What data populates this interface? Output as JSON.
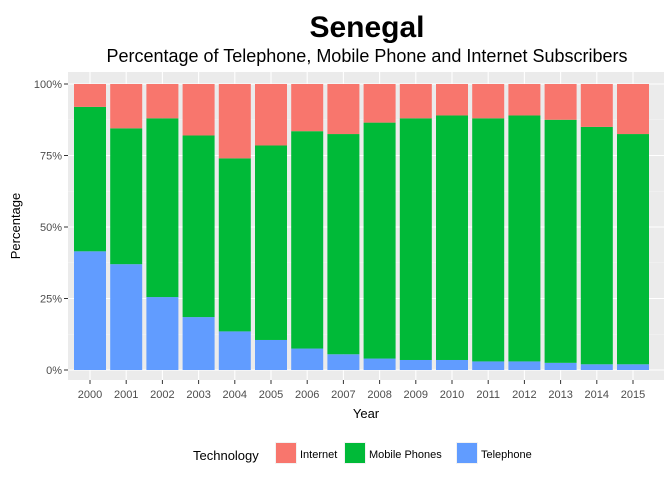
{
  "chart_data": {
    "type": "bar",
    "stacked": "percent",
    "title": "Senegal",
    "subtitle": "Percentage of Telephone, Mobile Phone and Internet Subscribers",
    "xlabel": "Year",
    "ylabel": "Percentage",
    "ylim": [
      0,
      100
    ],
    "yticks": [
      "0%",
      "25%",
      "50%",
      "75%",
      "100%"
    ],
    "ytick_values": [
      0,
      25,
      50,
      75,
      100
    ],
    "grid": true,
    "legend_placement": "bottom",
    "legend_title": "Technology",
    "categories": [
      "2000",
      "2001",
      "2002",
      "2003",
      "2004",
      "2005",
      "2006",
      "2007",
      "2008",
      "2009",
      "2010",
      "2011",
      "2012",
      "2013",
      "2014",
      "2015"
    ],
    "series": [
      {
        "name": "Telephone",
        "color": "#619CFF",
        "values": [
          41.5,
          37,
          25.5,
          18.5,
          13.5,
          10.5,
          7.5,
          5.5,
          4,
          3.5,
          3.5,
          3,
          3,
          2.5,
          2,
          2
        ]
      },
      {
        "name": "Mobile Phones",
        "color": "#00BA38",
        "values": [
          50.5,
          47.5,
          62.5,
          63.5,
          60.5,
          68,
          76,
          77,
          82.5,
          84.5,
          85.5,
          85,
          86,
          85,
          83,
          80.5
        ]
      },
      {
        "name": "Internet",
        "color": "#F8766D",
        "values": [
          8,
          15.5,
          12,
          18,
          26,
          21.5,
          16.5,
          17.5,
          13.5,
          12,
          11,
          12,
          11,
          12.5,
          15,
          17.5
        ]
      }
    ],
    "legend_order": [
      "Internet",
      "Mobile Phones",
      "Telephone"
    ]
  }
}
